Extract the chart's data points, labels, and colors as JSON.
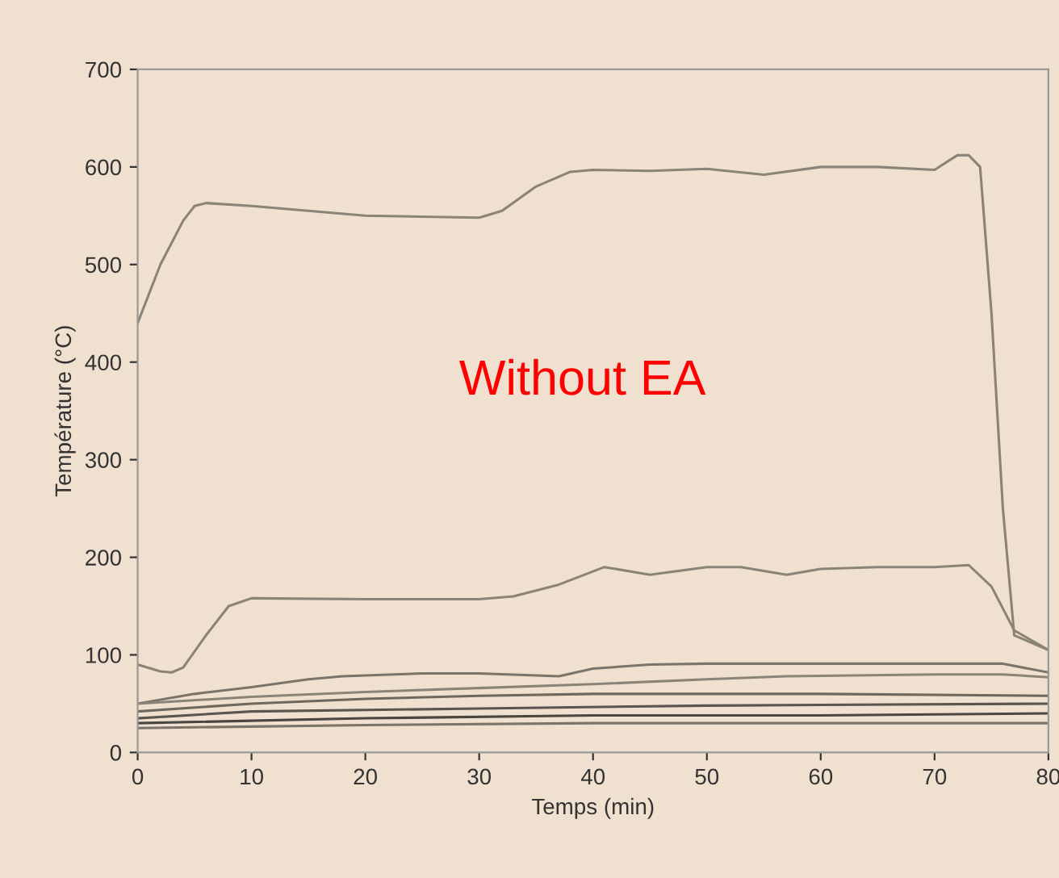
{
  "chart_data": {
    "type": "line",
    "xlabel": "Temps (min)",
    "ylabel": "Température (°C)",
    "annotations": [
      "Without EA"
    ],
    "xlim": [
      0,
      80
    ],
    "ylim": [
      0,
      700
    ],
    "xticks": [
      0,
      10,
      20,
      30,
      40,
      50,
      60,
      70,
      80
    ],
    "yticks": [
      0,
      100,
      200,
      300,
      400,
      500,
      600,
      700
    ],
    "grid": false,
    "legend": false,
    "marker": "none",
    "line_style": "solid",
    "series": [
      {
        "color": "#8a8478",
        "x": [
          0,
          2,
          4,
          5,
          6,
          10,
          20,
          30,
          32,
          35,
          38,
          40,
          45,
          50,
          55,
          60,
          65,
          70,
          72,
          73,
          74,
          75,
          76,
          77,
          80
        ],
        "values": [
          440,
          500,
          545,
          560,
          563,
          560,
          550,
          548,
          555,
          580,
          595,
          597,
          596,
          598,
          592,
          600,
          600,
          597,
          612,
          612,
          600,
          450,
          250,
          120,
          105
        ]
      },
      {
        "color": "#8a8478",
        "x": [
          0,
          2,
          3,
          4,
          6,
          8,
          10,
          20,
          30,
          33,
          37,
          41,
          45,
          50,
          53,
          57,
          60,
          65,
          70,
          73,
          75,
          77,
          80
        ],
        "values": [
          90,
          83,
          82,
          87,
          120,
          150,
          158,
          157,
          157,
          160,
          172,
          190,
          182,
          190,
          190,
          182,
          188,
          190,
          190,
          192,
          170,
          125,
          105
        ]
      },
      {
        "color": "#7a746a",
        "x": [
          0,
          5,
          10,
          15,
          18,
          25,
          30,
          37,
          40,
          45,
          50,
          60,
          70,
          76,
          80
        ],
        "values": [
          50,
          60,
          67,
          75,
          78,
          81,
          81,
          78,
          86,
          90,
          91,
          91,
          91,
          91,
          82
        ]
      },
      {
        "color": "#8a8478",
        "x": [
          0,
          10,
          20,
          30,
          40,
          50,
          57,
          70,
          76,
          80
        ],
        "values": [
          50,
          57,
          62,
          66,
          70,
          75,
          78,
          80,
          80,
          77
        ]
      },
      {
        "color": "#6e685f",
        "x": [
          0,
          10,
          20,
          30,
          40,
          50,
          60,
          80
        ],
        "values": [
          42,
          50,
          55,
          58,
          60,
          60,
          60,
          58
        ]
      },
      {
        "color": "#5a554e",
        "x": [
          0,
          10,
          30,
          50,
          80
        ],
        "values": [
          35,
          42,
          45,
          48,
          50
        ]
      },
      {
        "color": "#4a4640",
        "x": [
          0,
          20,
          40,
          60,
          80
        ],
        "values": [
          30,
          35,
          38,
          38,
          40
        ]
      },
      {
        "color": "#7a746a",
        "x": [
          0,
          20,
          40,
          60,
          80
        ],
        "values": [
          25,
          28,
          30,
          30,
          30
        ]
      }
    ]
  }
}
